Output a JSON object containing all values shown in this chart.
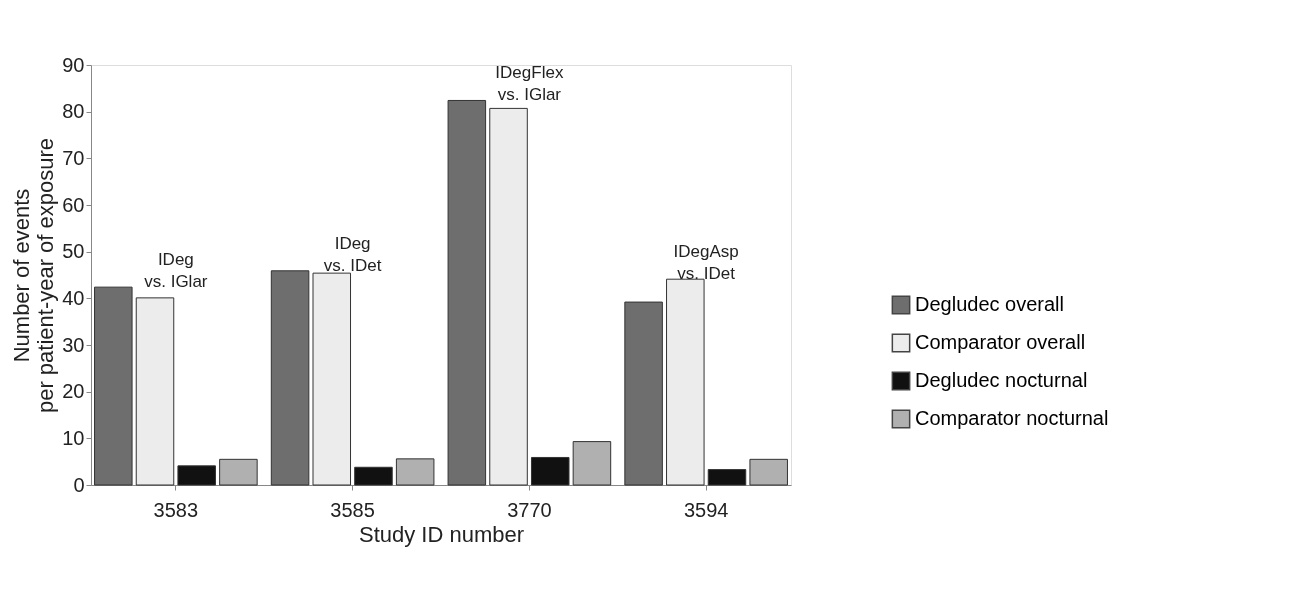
{
  "chart_data": {
    "type": "bar",
    "xlabel": "Study ID number",
    "ylabel": "Number of events\nper patient-year of exposure",
    "categories": [
      "3583",
      "3585",
      "3770",
      "3594"
    ],
    "series": [
      {
        "name": "Degludec overall",
        "color": "#6e6e6e",
        "values": [
          42.4,
          45.9,
          82.4,
          39.2
        ]
      },
      {
        "name": "Comparator overall",
        "color": "#ececec",
        "values": [
          40.1,
          45.4,
          80.7,
          44.1
        ]
      },
      {
        "name": "Degludec nocturnal",
        "color": "#111111",
        "values": [
          4.1,
          3.8,
          5.9,
          3.3
        ]
      },
      {
        "name": "Comparator nocturnal",
        "color": "#b0b0b0",
        "values": [
          5.5,
          5.6,
          9.3,
          5.5
        ]
      }
    ],
    "ylim": [
      0,
      90
    ],
    "yticks": [
      0,
      10,
      20,
      30,
      40,
      50,
      60,
      70,
      80,
      90
    ],
    "grid": false,
    "legend": "right",
    "annotations": [
      "IDeg\nvs. IGlar",
      "IDeg\nvs. IDet",
      "IDegFlex\nvs. IGlar",
      "IDegAsp\nvs. IDet"
    ]
  }
}
